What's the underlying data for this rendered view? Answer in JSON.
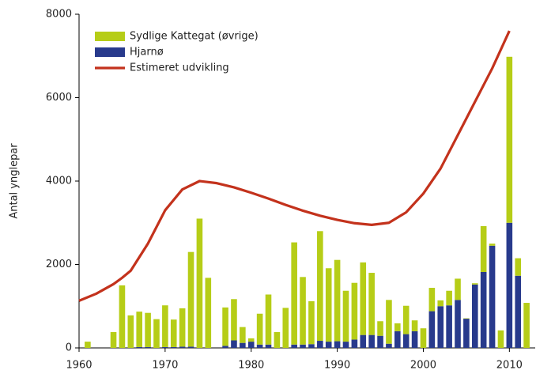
{
  "chart_data": {
    "type": "bar",
    "stacked": true,
    "y_label": "Antal ynglepar",
    "x": [
      1961,
      1964,
      1965,
      1966,
      1967,
      1968,
      1969,
      1970,
      1971,
      1972,
      1973,
      1974,
      1975,
      1977,
      1978,
      1979,
      1980,
      1981,
      1982,
      1983,
      1984,
      1985,
      1986,
      1987,
      1988,
      1989,
      1990,
      1991,
      1992,
      1993,
      1994,
      1995,
      1996,
      1997,
      1998,
      1999,
      2000,
      2001,
      2002,
      2003,
      2004,
      2005,
      2006,
      2007,
      2008,
      2009,
      2010,
      2011,
      2012
    ],
    "series": [
      {
        "name": "Sydlige Kattegat (øvrige)",
        "color": "#b6cd17",
        "values": [
          150,
          380,
          1500,
          780,
          850,
          820,
          690,
          1000,
          660,
          920,
          2270,
          3100,
          1680,
          920,
          990,
          380,
          80,
          740,
          1200,
          380,
          960,
          2450,
          1620,
          1030,
          2630,
          1760,
          1950,
          1220,
          1360,
          1740,
          1490,
          350,
          1050,
          190,
          680,
          260,
          470,
          560,
          140,
          350,
          510,
          10,
          30,
          1100,
          50,
          420,
          3980,
          420,
          1080
        ]
      },
      {
        "name": "Hjarnø",
        "color": "#283a8c",
        "values": [
          0,
          0,
          0,
          0,
          20,
          20,
          0,
          20,
          20,
          30,
          30,
          0,
          0,
          50,
          180,
          120,
          150,
          80,
          80,
          0,
          0,
          80,
          80,
          90,
          170,
          150,
          160,
          150,
          200,
          310,
          310,
          290,
          100,
          400,
          330,
          400,
          0,
          880,
          1000,
          1020,
          1150,
          700,
          1520,
          1820,
          2450,
          0,
          3000,
          1730,
          0
        ]
      }
    ],
    "line": {
      "name": "Estimeret udvikling",
      "color": "#c3321c",
      "x": [
        1960,
        1962,
        1964,
        1965,
        1966,
        1968,
        1970,
        1972,
        1974,
        1976,
        1978,
        1980,
        1982,
        1984,
        1986,
        1988,
        1990,
        1992,
        1994,
        1996,
        1998,
        2000,
        2002,
        2004,
        2006,
        2008,
        2010
      ],
      "values": [
        1130,
        1300,
        1530,
        1680,
        1850,
        2500,
        3300,
        3800,
        4000,
        3950,
        3850,
        3720,
        3580,
        3430,
        3290,
        3170,
        3070,
        2990,
        2950,
        3000,
        3250,
        3700,
        4300,
        5100,
        5900,
        6700,
        7600
      ]
    },
    "xlim": [
      1960,
      2013
    ],
    "ylim": [
      0,
      8000
    ],
    "xticks": [
      1960,
      1970,
      1980,
      1990,
      2000,
      2010
    ],
    "yticks": [
      0,
      2000,
      4000,
      6000,
      8000
    ],
    "legend": "top-left"
  }
}
